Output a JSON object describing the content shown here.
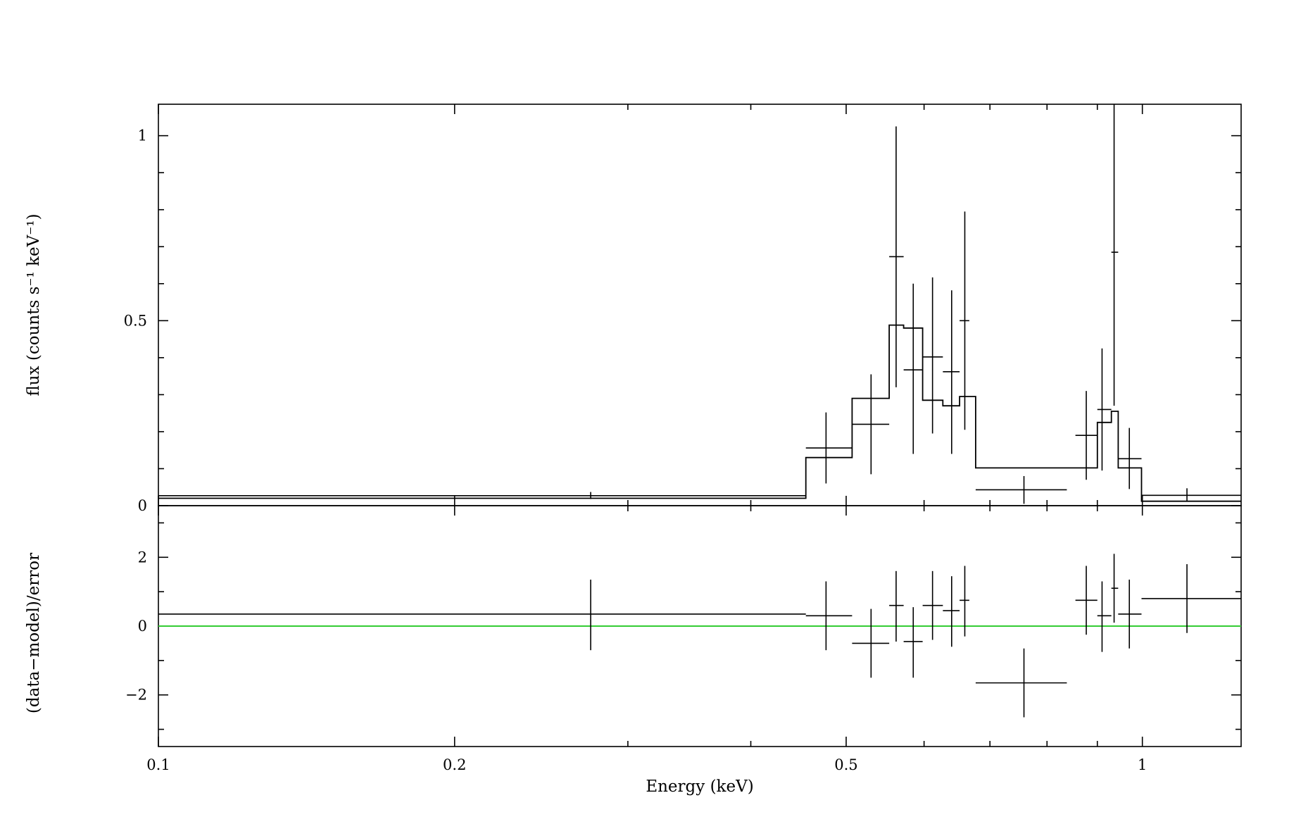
{
  "colors": {
    "ink": "#000000",
    "zero_line": "#33cc33",
    "background": "#ffffff"
  },
  "chart_data": [
    {
      "panel": "spectrum",
      "type": "line",
      "ylabel": "flux (counts s⁻¹ keV⁻¹)",
      "ylim": [
        0,
        1.085
      ],
      "yscale": "linear",
      "xscale": "log",
      "xlim": [
        0.1,
        1.26
      ],
      "y_ticks": [
        {
          "value": 0,
          "label": "0"
        },
        {
          "value": 0.5,
          "label": "0.5"
        },
        {
          "value": 1,
          "label": "1"
        }
      ],
      "series": [
        {
          "kind": "data-with-errors",
          "points": [
            {
              "x": 0.275,
              "xlo": 0.1,
              "xhi": 0.455,
              "y": 0.027,
              "ylo": 0.018,
              "yhi": 0.037
            },
            {
              "x": 0.477,
              "xlo": 0.455,
              "xhi": 0.507,
              "y": 0.156,
              "ylo": 0.06,
              "yhi": 0.252
            },
            {
              "x": 0.53,
              "xlo": 0.507,
              "xhi": 0.553,
              "y": 0.22,
              "ylo": 0.085,
              "yhi": 0.355
            },
            {
              "x": 0.562,
              "xlo": 0.553,
              "xhi": 0.572,
              "y": 0.673,
              "ylo": 0.32,
              "yhi": 1.025
            },
            {
              "x": 0.585,
              "xlo": 0.572,
              "xhi": 0.598,
              "y": 0.367,
              "ylo": 0.14,
              "yhi": 0.6
            },
            {
              "x": 0.612,
              "xlo": 0.598,
              "xhi": 0.627,
              "y": 0.402,
              "ylo": 0.195,
              "yhi": 0.617
            },
            {
              "x": 0.64,
              "xlo": 0.627,
              "xhi": 0.652,
              "y": 0.362,
              "ylo": 0.14,
              "yhi": 0.582
            },
            {
              "x": 0.66,
              "xlo": 0.652,
              "xhi": 0.667,
              "y": 0.5,
              "ylo": 0.205,
              "yhi": 0.795
            },
            {
              "x": 0.758,
              "xlo": 0.677,
              "xhi": 0.838,
              "y": 0.043,
              "ylo": 0.005,
              "yhi": 0.08
            },
            {
              "x": 0.877,
              "xlo": 0.855,
              "xhi": 0.9,
              "y": 0.19,
              "ylo": 0.07,
              "yhi": 0.31
            },
            {
              "x": 0.91,
              "xlo": 0.9,
              "xhi": 0.93,
              "y": 0.26,
              "ylo": 0.095,
              "yhi": 0.425
            },
            {
              "x": 0.936,
              "xlo": 0.93,
              "xhi": 0.945,
              "y": 0.685,
              "ylo": 0.27,
              "yhi": 1.085
            },
            {
              "x": 0.97,
              "xlo": 0.945,
              "xhi": 0.998,
              "y": 0.127,
              "ylo": 0.045,
              "yhi": 0.21
            },
            {
              "x": 1.11,
              "xlo": 0.998,
              "xhi": 1.26,
              "y": 0.028,
              "ylo": 0.012,
              "yhi": 0.047
            }
          ]
        },
        {
          "kind": "model-step",
          "steps": [
            {
              "x0": 0.1,
              "x1": 0.455,
              "y": 0.02
            },
            {
              "x0": 0.455,
              "x1": 0.507,
              "y": 0.13
            },
            {
              "x0": 0.507,
              "x1": 0.553,
              "y": 0.29
            },
            {
              "x0": 0.553,
              "x1": 0.572,
              "y": 0.488
            },
            {
              "x0": 0.572,
              "x1": 0.598,
              "y": 0.48
            },
            {
              "x0": 0.598,
              "x1": 0.627,
              "y": 0.285
            },
            {
              "x0": 0.627,
              "x1": 0.652,
              "y": 0.27
            },
            {
              "x0": 0.652,
              "x1": 0.677,
              "y": 0.295
            },
            {
              "x0": 0.677,
              "x1": 0.9,
              "y": 0.102
            },
            {
              "x0": 0.9,
              "x1": 0.93,
              "y": 0.225
            },
            {
              "x0": 0.93,
              "x1": 0.945,
              "y": 0.255
            },
            {
              "x0": 0.945,
              "x1": 0.998,
              "y": 0.102
            },
            {
              "x0": 0.998,
              "x1": 1.26,
              "y": 0.012
            }
          ]
        }
      ]
    },
    {
      "panel": "residuals",
      "type": "scatter",
      "xlabel": "Energy (keV)",
      "ylabel": "(data−model)/error",
      "xscale": "log",
      "xlim": [
        0.1,
        1.26
      ],
      "ylim": [
        -3.5,
        3.5
      ],
      "x_ticks": [
        {
          "value": 0.1,
          "label": "0.1"
        },
        {
          "value": 0.2,
          "label": "0.2"
        },
        {
          "value": 0.5,
          "label": "0.5"
        },
        {
          "value": 1,
          "label": "1"
        }
      ],
      "y_ticks": [
        {
          "value": -2,
          "label": "−2"
        },
        {
          "value": 0,
          "label": "0"
        },
        {
          "value": 2,
          "label": "2"
        }
      ],
      "zero_line": 0,
      "points": [
        {
          "x": 0.275,
          "xlo": 0.1,
          "xhi": 0.455,
          "y": 0.35,
          "ylo": -0.7,
          "yhi": 1.35
        },
        {
          "x": 0.477,
          "xlo": 0.455,
          "xhi": 0.507,
          "y": 0.3,
          "ylo": -0.7,
          "yhi": 1.3
        },
        {
          "x": 0.53,
          "xlo": 0.507,
          "xhi": 0.553,
          "y": -0.5,
          "ylo": -1.5,
          "yhi": 0.5
        },
        {
          "x": 0.562,
          "xlo": 0.553,
          "xhi": 0.572,
          "y": 0.6,
          "ylo": -0.45,
          "yhi": 1.6
        },
        {
          "x": 0.585,
          "xlo": 0.572,
          "xhi": 0.598,
          "y": -0.45,
          "ylo": -1.5,
          "yhi": 0.55
        },
        {
          "x": 0.612,
          "xlo": 0.598,
          "xhi": 0.627,
          "y": 0.6,
          "ylo": -0.4,
          "yhi": 1.6
        },
        {
          "x": 0.64,
          "xlo": 0.627,
          "xhi": 0.652,
          "y": 0.45,
          "ylo": -0.6,
          "yhi": 1.45
        },
        {
          "x": 0.66,
          "xlo": 0.652,
          "xhi": 0.667,
          "y": 0.75,
          "ylo": -0.3,
          "yhi": 1.75
        },
        {
          "x": 0.758,
          "xlo": 0.677,
          "xhi": 0.838,
          "y": -1.65,
          "ylo": -2.65,
          "yhi": -0.65
        },
        {
          "x": 0.877,
          "xlo": 0.855,
          "xhi": 0.9,
          "y": 0.75,
          "ylo": -0.25,
          "yhi": 1.75
        },
        {
          "x": 0.91,
          "xlo": 0.9,
          "xhi": 0.93,
          "y": 0.3,
          "ylo": -0.75,
          "yhi": 1.3
        },
        {
          "x": 0.936,
          "xlo": 0.93,
          "xhi": 0.945,
          "y": 1.1,
          "ylo": 0.1,
          "yhi": 2.1
        },
        {
          "x": 0.97,
          "xlo": 0.945,
          "xhi": 0.998,
          "y": 0.35,
          "ylo": -0.65,
          "yhi": 1.35
        },
        {
          "x": 1.11,
          "xlo": 0.998,
          "xhi": 1.26,
          "y": 0.8,
          "ylo": -0.2,
          "yhi": 1.8
        }
      ]
    }
  ]
}
